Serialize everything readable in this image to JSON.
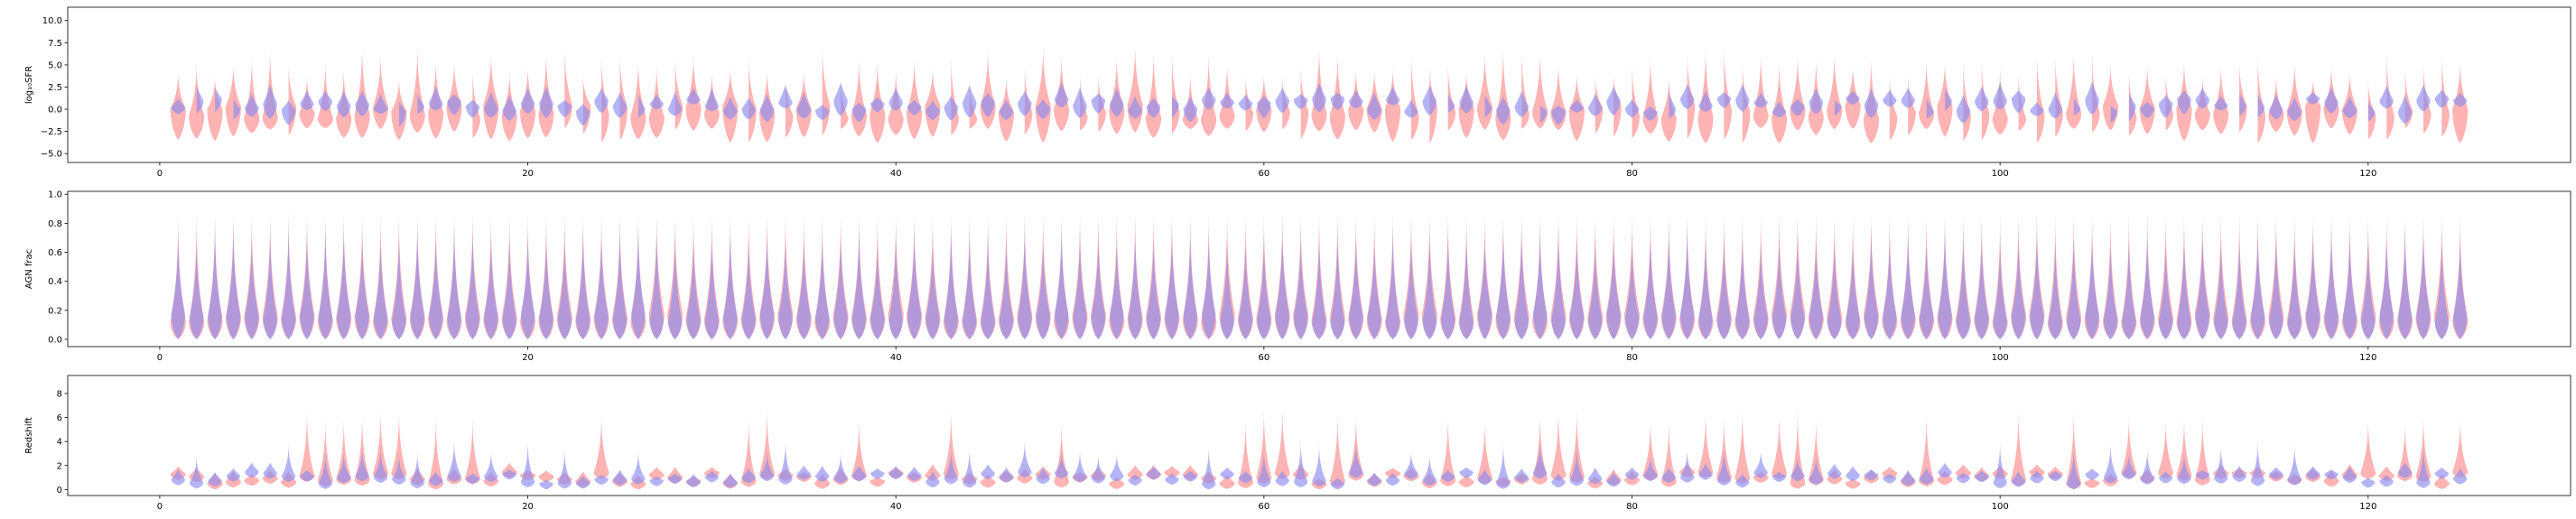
{
  "chart_data": [
    {
      "type": "violin",
      "ylabel": "log₁₀SFR",
      "xlim": [
        -5,
        131
      ],
      "ylim": [
        -6,
        11.5
      ],
      "xticks": [
        0,
        20,
        40,
        60,
        80,
        100,
        120
      ],
      "yticks": [
        -5.0,
        -2.5,
        0.0,
        2.5,
        5.0,
        7.5,
        10.0
      ],
      "ytick_labels": [
        "−5.0",
        "−2.5",
        "0.0",
        "2.5",
        "5.0",
        "7.5",
        "10.0"
      ],
      "n_groups": 125,
      "series": [
        {
          "color": "#ff9a9a",
          "median": -0.3,
          "range": [
            -3.5,
            6.0
          ]
        },
        {
          "color": "#8c8cf0",
          "median": 0.5,
          "range": [
            -1.5,
            2.5
          ]
        }
      ]
    },
    {
      "type": "violin",
      "ylabel": "AGN frac",
      "xlim": [
        -5,
        131
      ],
      "ylim": [
        -0.05,
        1.02
      ],
      "xticks": [
        0,
        20,
        40,
        60,
        80,
        100,
        120
      ],
      "yticks": [
        0.0,
        0.2,
        0.4,
        0.6,
        0.8,
        1.0
      ],
      "ytick_labels": [
        "0.0",
        "0.2",
        "0.4",
        "0.6",
        "0.8",
        "1.0"
      ],
      "n_groups": 125,
      "series": [
        {
          "color": "#ff9a9a",
          "median": 0.15,
          "range": [
            0.0,
            1.0
          ]
        },
        {
          "color": "#8c8cf0",
          "median": 0.15,
          "range": [
            0.0,
            0.85
          ]
        }
      ]
    },
    {
      "type": "violin",
      "ylabel": "Redshift",
      "xlim": [
        -5,
        131
      ],
      "ylim": [
        -0.5,
        9.5
      ],
      "xticks": [
        0,
        20,
        40,
        60,
        80,
        100,
        120
      ],
      "yticks": [
        0,
        2,
        4,
        6,
        8
      ],
      "ytick_labels": [
        "0",
        "2",
        "4",
        "6",
        "8"
      ],
      "n_groups": 125,
      "series": [
        {
          "color": "#ff9a9a",
          "median": 0.8,
          "range": [
            0.0,
            7.0
          ]
        },
        {
          "color": "#8c8cf0",
          "median": 0.8,
          "range": [
            0.0,
            4.0
          ]
        }
      ]
    }
  ]
}
